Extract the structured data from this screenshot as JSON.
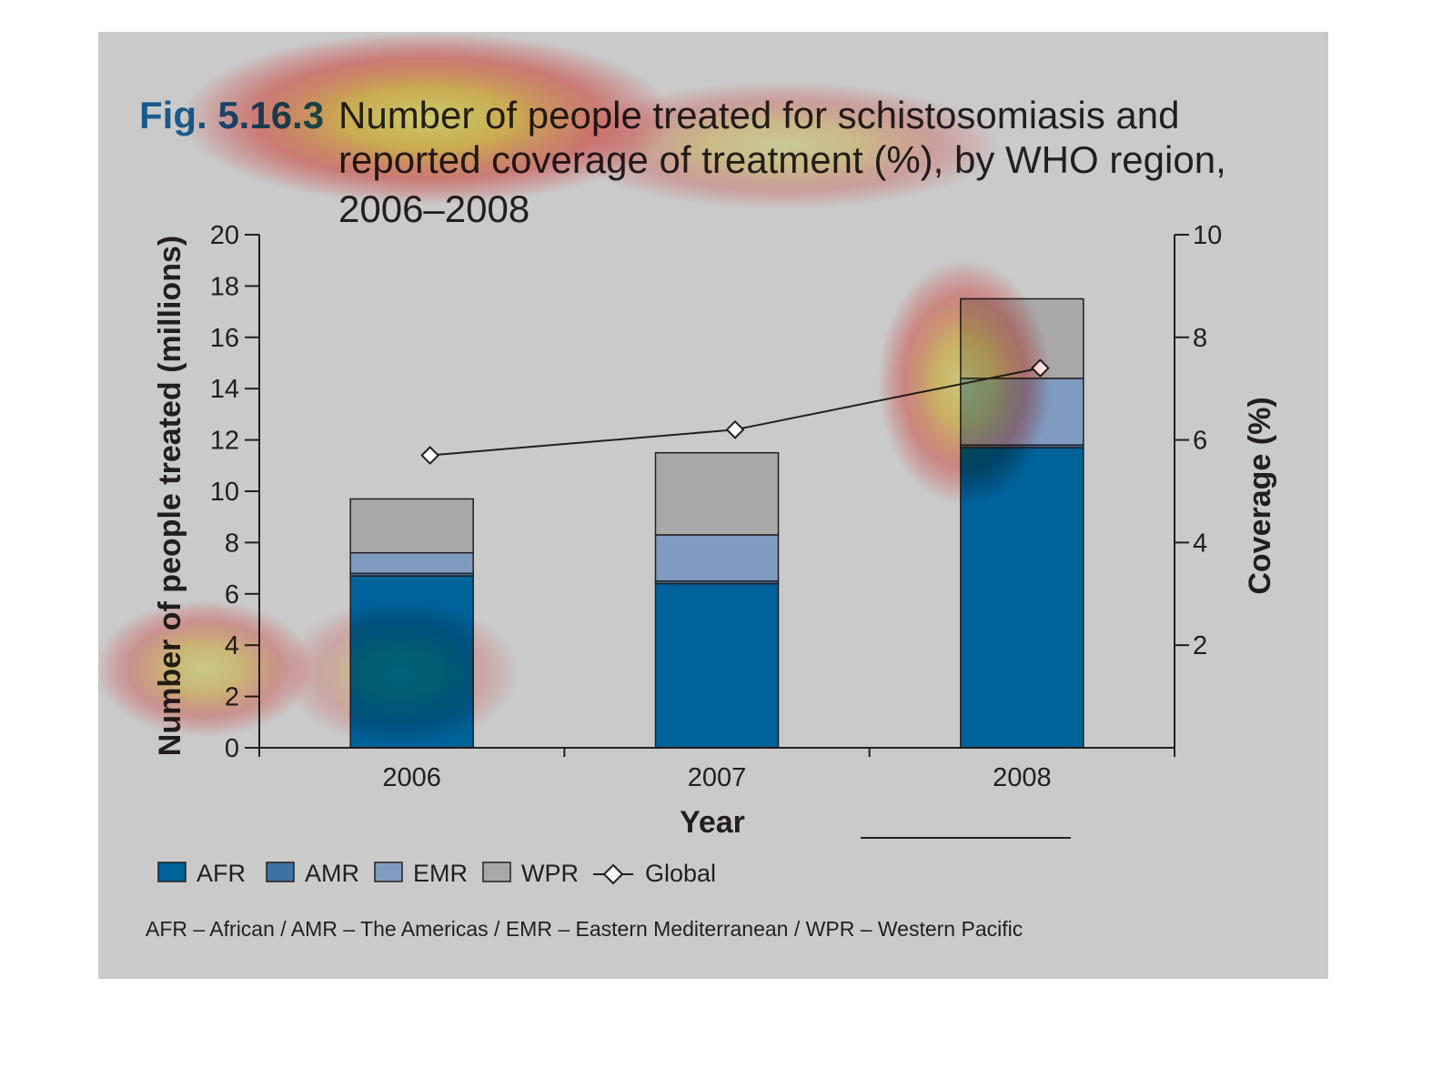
{
  "figure": {
    "number": "Fig. 5.16.3",
    "title_lines": [
      "Number of people treated for schistosomiasis and",
      "reported coverage of treatment (%), by WHO region,",
      "2006–2008"
    ],
    "footnote": "AFR – African / AMR – The Americas / EMR – Eastern Mediterranean / WPR – Western Pacific"
  },
  "colors": {
    "panel_bg": "#cacaca",
    "fig_number": "#1c5a8c",
    "AFR": "#00629b",
    "AMR": "#3c72a6",
    "EMR": "#7f9bbf",
    "WPR": "#a8a8a8",
    "line": "#231f20",
    "heat_core": "#ffff66",
    "heat_mid": "#ffcc33",
    "heat_edge": "#ff3333"
  },
  "chart_data": {
    "type": "bar",
    "stacked": true,
    "categories": [
      "2006",
      "2007",
      "2008"
    ],
    "xlabel": "Year",
    "ylabel": "Number of people treated (millions)",
    "ylim": [
      0,
      20
    ],
    "yticks": [
      0,
      2,
      4,
      6,
      8,
      10,
      12,
      14,
      16,
      18,
      20
    ],
    "y2label": "Coverage (%)",
    "y2lim": [
      0,
      10
    ],
    "y2ticks": [
      2,
      4,
      6,
      8,
      10
    ],
    "series": [
      {
        "name": "AFR",
        "values": [
          6.7,
          6.4,
          11.7
        ]
      },
      {
        "name": "AMR",
        "values": [
          0.1,
          0.1,
          0.1
        ]
      },
      {
        "name": "EMR",
        "values": [
          0.8,
          1.8,
          2.6
        ]
      },
      {
        "name": "WPR",
        "values": [
          2.1,
          3.2,
          3.1
        ]
      }
    ],
    "line_series": {
      "name": "Global",
      "axis": "right",
      "values": [
        5.7,
        6.2,
        7.4
      ]
    },
    "legend": [
      "AFR",
      "AMR",
      "EMR",
      "WPR",
      "Global"
    ],
    "legend_position": "bottom",
    "grid": false
  },
  "heatmap_overlay": {
    "present": true,
    "hotspots": [
      {
        "target": "title",
        "intensity": 1.0
      },
      {
        "target": "2008 bar top",
        "intensity": 0.8
      },
      {
        "target": "y-axis label bottom",
        "intensity": 0.6
      }
    ]
  }
}
